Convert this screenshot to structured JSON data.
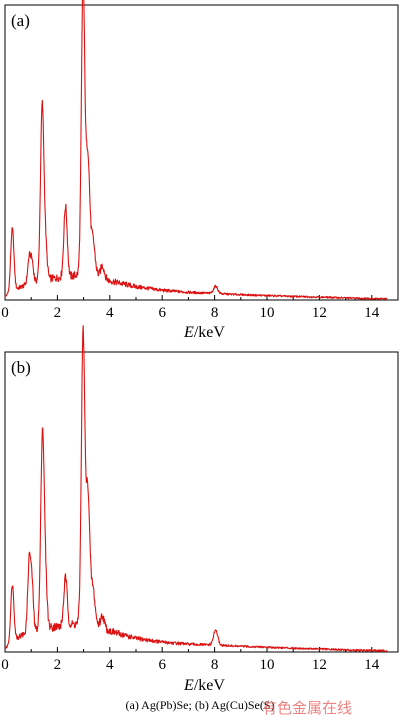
{
  "caption": "(a) Ag(Pb)Se; (b) Ag(Cu)Se(S)",
  "watermark": "有色金属在线",
  "colors": {
    "spectrum": "#dd1111",
    "axis": "#000000"
  },
  "chart_data": [
    {
      "type": "line",
      "panel_label": "(a)",
      "xlabel_italic": "E",
      "xlabel_unit": "/keV",
      "ylabel": "",
      "xlim": [
        0,
        15
      ],
      "ylim": [
        0,
        100
      ],
      "xticks": [
        0,
        2,
        4,
        6,
        8,
        10,
        12,
        14
      ],
      "grid": false,
      "series": [
        {
          "peaks": [
            {
              "x": 0.28,
              "y": 21,
              "w": 0.06
            },
            {
              "x": 0.93,
              "y": 9,
              "w": 0.06
            },
            {
              "x": 1.04,
              "y": 6,
              "w": 0.05
            },
            {
              "x": 1.42,
              "y": 59,
              "w": 0.065
            },
            {
              "x": 1.55,
              "y": 10,
              "w": 0.06
            },
            {
              "x": 2.31,
              "y": 24,
              "w": 0.065
            },
            {
              "x": 2.98,
              "y": 98,
              "w": 0.065
            },
            {
              "x": 3.16,
              "y": 40,
              "w": 0.07
            },
            {
              "x": 3.35,
              "y": 12,
              "w": 0.08
            },
            {
              "x": 3.72,
              "y": 4,
              "w": 0.07
            },
            {
              "x": 8.04,
              "y": 2.5,
              "w": 0.08
            }
          ],
          "continuum": [
            [
              0.0,
              1
            ],
            [
              0.2,
              3
            ],
            [
              0.5,
              4
            ],
            [
              1.0,
              6
            ],
            [
              1.5,
              7
            ],
            [
              2.0,
              7.5
            ],
            [
              2.5,
              8
            ],
            [
              3.0,
              9
            ],
            [
              3.5,
              8.5
            ],
            [
              4.0,
              6.5
            ],
            [
              5.0,
              4.5
            ],
            [
              6.0,
              3.3
            ],
            [
              7.0,
              2.6
            ],
            [
              8.0,
              2.2
            ],
            [
              9.0,
              1.8
            ],
            [
              10.0,
              1.5
            ],
            [
              11.0,
              1.2
            ],
            [
              12.0,
              1.0
            ],
            [
              13.0,
              0.7
            ],
            [
              14.0,
              0.5
            ],
            [
              14.6,
              0.4
            ]
          ]
        }
      ]
    },
    {
      "type": "line",
      "panel_label": "(b)",
      "xlabel_italic": "E",
      "xlabel_unit": "/keV",
      "ylabel": "",
      "xlim": [
        0,
        15
      ],
      "ylim": [
        0,
        100
      ],
      "xticks": [
        0,
        2,
        4,
        6,
        8,
        10,
        12,
        14
      ],
      "grid": false,
      "series": [
        {
          "peaks": [
            {
              "x": 0.28,
              "y": 19,
              "w": 0.06
            },
            {
              "x": 0.93,
              "y": 25,
              "w": 0.06
            },
            {
              "x": 1.04,
              "y": 13,
              "w": 0.05
            },
            {
              "x": 1.43,
              "y": 65,
              "w": 0.065
            },
            {
              "x": 1.55,
              "y": 14,
              "w": 0.06
            },
            {
              "x": 2.31,
              "y": 16,
              "w": 0.065
            },
            {
              "x": 2.98,
              "y": 96,
              "w": 0.065
            },
            {
              "x": 3.16,
              "y": 44,
              "w": 0.07
            },
            {
              "x": 3.35,
              "y": 12,
              "w": 0.08
            },
            {
              "x": 3.72,
              "y": 4,
              "w": 0.07
            },
            {
              "x": 8.04,
              "y": 5,
              "w": 0.08
            }
          ],
          "continuum": [
            [
              0.0,
              1
            ],
            [
              0.2,
              3
            ],
            [
              0.5,
              5
            ],
            [
              1.0,
              7
            ],
            [
              1.5,
              8
            ],
            [
              2.0,
              8.5
            ],
            [
              2.5,
              9
            ],
            [
              3.0,
              10
            ],
            [
              3.5,
              9
            ],
            [
              4.0,
              7
            ],
            [
              5.0,
              4.5
            ],
            [
              6.0,
              3.3
            ],
            [
              7.0,
              2.6
            ],
            [
              8.0,
              2.3
            ],
            [
              9.0,
              1.9
            ],
            [
              10.0,
              1.6
            ],
            [
              11.0,
              1.3
            ],
            [
              12.0,
              1.0
            ],
            [
              13.0,
              0.7
            ],
            [
              14.0,
              0.5
            ],
            [
              14.6,
              0.4
            ]
          ]
        }
      ]
    }
  ]
}
